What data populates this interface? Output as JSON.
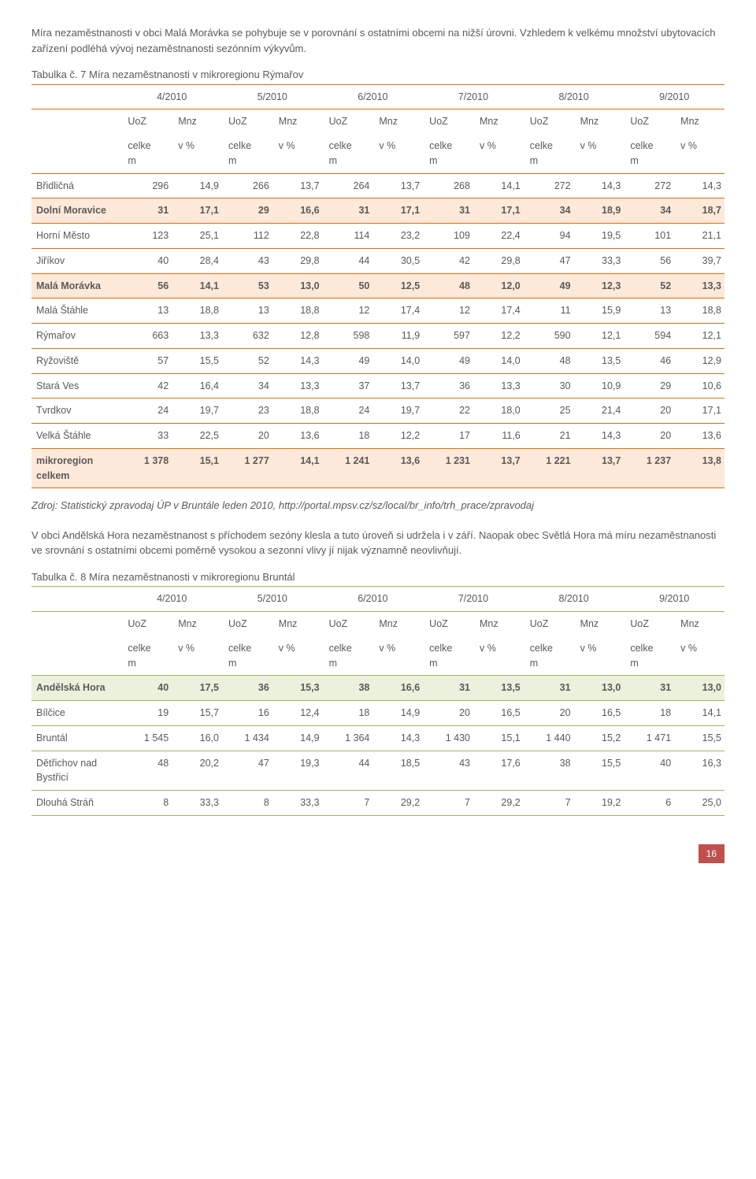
{
  "colors": {
    "text": "#5a5a5a",
    "border_orange": "#e46c0a",
    "border_green": "#9bbb59",
    "highlight_bg": "#fde9d9",
    "highlight_bg_green": "#ebf1dd",
    "page_badge_bg": "#c0504d",
    "page_badge_fg": "#ffffff"
  },
  "intro": {
    "p1": "Míra nezaměstnanosti v obci Malá Morávka se pohybuje se v porovnání s ostatními obcemi na nižší úrovni. Vzhledem k velkému množství ubytovacích zařízení podléhá vývoj nezaměstnanosti sezónním výkyvům."
  },
  "table1": {
    "caption": "Tabulka č. 7 Míra nezaměstnanosti v mikroregionu Rýmařov",
    "periods": [
      "4/2010",
      "5/2010",
      "6/2010",
      "7/2010",
      "8/2010",
      "9/2010"
    ],
    "sub_uoz": "UoZ",
    "sub_mnz": "Mnz",
    "sub2_celkem": "celkem",
    "sub2_pct": "v %",
    "rows": [
      {
        "name": "Břidličná",
        "v": [
          "296",
          "14,9",
          "266",
          "13,7",
          "264",
          "13,7",
          "268",
          "14,1",
          "272",
          "14,3",
          "272",
          "14,3"
        ],
        "hl": false
      },
      {
        "name": "Dolní Moravice",
        "v": [
          "31",
          "17,1",
          "29",
          "16,6",
          "31",
          "17,1",
          "31",
          "17,1",
          "34",
          "18,9",
          "34",
          "18,7"
        ],
        "hl": true
      },
      {
        "name": "Horní Město",
        "v": [
          "123",
          "25,1",
          "112",
          "22,8",
          "114",
          "23,2",
          "109",
          "22,4",
          "94",
          "19,5",
          "101",
          "21,1"
        ],
        "hl": false
      },
      {
        "name": "Jiříkov",
        "v": [
          "40",
          "28,4",
          "43",
          "29,8",
          "44",
          "30,5",
          "42",
          "29,8",
          "47",
          "33,3",
          "56",
          "39,7"
        ],
        "hl": false
      },
      {
        "name": "Malá Morávka",
        "v": [
          "56",
          "14,1",
          "53",
          "13,0",
          "50",
          "12,5",
          "48",
          "12,0",
          "49",
          "12,3",
          "52",
          "13,3"
        ],
        "hl": true
      },
      {
        "name": "Malá Štáhle",
        "v": [
          "13",
          "18,8",
          "13",
          "18,8",
          "12",
          "17,4",
          "12",
          "17,4",
          "11",
          "15,9",
          "13",
          "18,8"
        ],
        "hl": false
      },
      {
        "name": "Rýmařov",
        "v": [
          "663",
          "13,3",
          "632",
          "12,8",
          "598",
          "11,9",
          "597",
          "12,2",
          "590",
          "12,1",
          "594",
          "12,1"
        ],
        "hl": false
      },
      {
        "name": "Ryžoviště",
        "v": [
          "57",
          "15,5",
          "52",
          "14,3",
          "49",
          "14,0",
          "49",
          "14,0",
          "48",
          "13,5",
          "46",
          "12,9"
        ],
        "hl": false
      },
      {
        "name": "Stará Ves",
        "v": [
          "42",
          "16,4",
          "34",
          "13,3",
          "37",
          "13,7",
          "36",
          "13,3",
          "30",
          "10,9",
          "29",
          "10,6"
        ],
        "hl": false
      },
      {
        "name": "Tvrdkov",
        "v": [
          "24",
          "19,7",
          "23",
          "18,8",
          "24",
          "19,7",
          "22",
          "18,0",
          "25",
          "21,4",
          "20",
          "17,1"
        ],
        "hl": false
      },
      {
        "name": "Velká Štáhle",
        "v": [
          "33",
          "22,5",
          "20",
          "13,6",
          "18",
          "12,2",
          "17",
          "11,6",
          "21",
          "14,3",
          "20",
          "13,6"
        ],
        "hl": false
      },
      {
        "name": "mikroregion celkem",
        "v": [
          "1 378",
          "15,1",
          "1 277",
          "14,1",
          "1 241",
          "13,6",
          "1 231",
          "13,7",
          "1 221",
          "13,7",
          "1 237",
          "13,8"
        ],
        "hl": true
      }
    ],
    "source": "Zdroj: Statistický zpravodaj ÚP v Bruntále leden 2010, http://portal.mpsv.cz/sz/local/br_info/trh_prace/zpravodaj"
  },
  "midtext": "V obci Andělská Hora nezaměstnanost s příchodem sezóny klesla a tuto úroveň si udržela i v září. Naopak obec Světlá Hora má míru nezaměstnanosti ve srovnání s ostatními obcemi poměrně vysokou a sezonní vlivy jí nijak významně neovlivňují.",
  "table2": {
    "caption": "Tabulka č. 8 Míra nezaměstnanosti v mikroregionu Bruntál",
    "periods": [
      "4/2010",
      "5/2010",
      "6/2010",
      "7/2010",
      "8/2010",
      "9/2010"
    ],
    "sub_uoz": "UoZ",
    "sub_mnz": "Mnz",
    "sub2_celkem": "celkem",
    "sub2_pct": "v %",
    "rows": [
      {
        "name": "Andělská Hora",
        "v": [
          "40",
          "17,5",
          "36",
          "15,3",
          "38",
          "16,6",
          "31",
          "13,5",
          "31",
          "13,0",
          "31",
          "13,0"
        ],
        "hl": true
      },
      {
        "name": "Bílčice",
        "v": [
          "19",
          "15,7",
          "16",
          "12,4",
          "18",
          "14,9",
          "20",
          "16,5",
          "20",
          "16,5",
          "18",
          "14,1"
        ],
        "hl": false
      },
      {
        "name": "Bruntál",
        "v": [
          "1 545",
          "16,0",
          "1 434",
          "14,9",
          "1 364",
          "14,3",
          "1 430",
          "15,1",
          "1 440",
          "15,2",
          "1 471",
          "15,5"
        ],
        "hl": false
      },
      {
        "name": "Dětřichov nad Bystřicí",
        "v": [
          "48",
          "20,2",
          "47",
          "19,3",
          "44",
          "18,5",
          "43",
          "17,6",
          "38",
          "15,5",
          "40",
          "16,3"
        ],
        "hl": false
      },
      {
        "name": "Dlouhá Stráň",
        "v": [
          "8",
          "33,3",
          "8",
          "33,3",
          "7",
          "29,2",
          "7",
          "29,2",
          "7",
          "19,2",
          "6",
          "25,0"
        ],
        "hl": false
      }
    ]
  },
  "page_number": "16"
}
